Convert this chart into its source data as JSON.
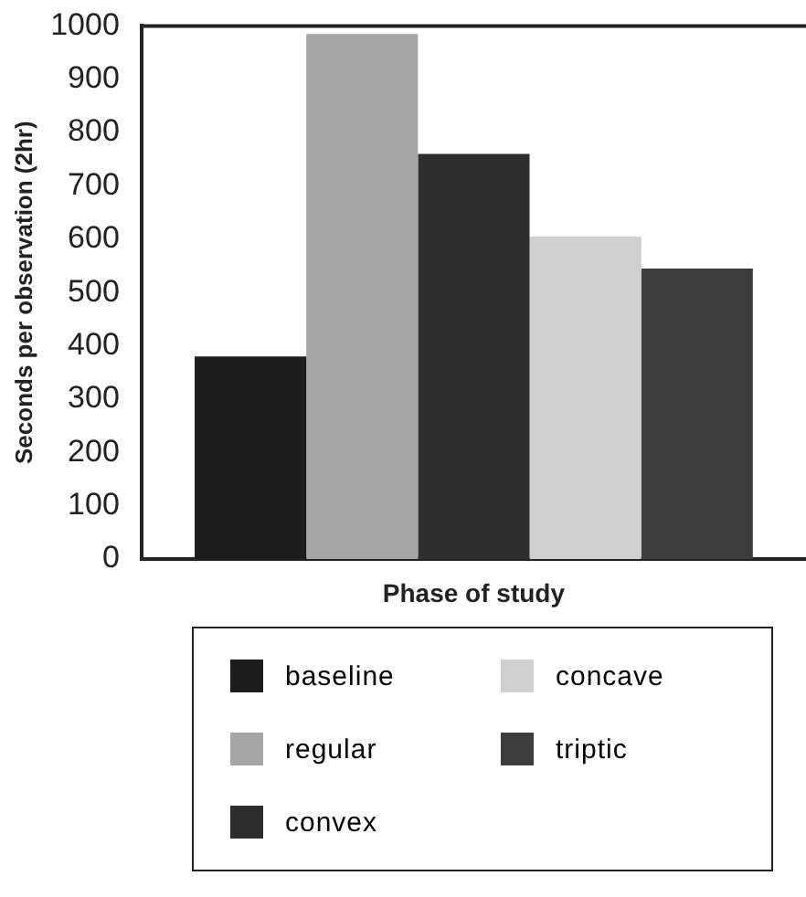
{
  "chart_data": {
    "type": "bar",
    "xlabel": "Phase of study",
    "ylabel": "Seconds per observation (2hr)",
    "categories": [
      null
    ],
    "series": [
      {
        "name": "baseline",
        "color": "#1c1c1c",
        "values": [
          380
        ]
      },
      {
        "name": "regular",
        "color": "#a6a6a6",
        "values": [
          985
        ]
      },
      {
        "name": "convex",
        "color": "#2e2e2e",
        "values": [
          760
        ]
      },
      {
        "name": "concave",
        "color": "#cfcfcf",
        "values": [
          605
        ]
      },
      {
        "name": "triptic",
        "color": "#3c3c3c",
        "values": [
          545
        ]
      }
    ],
    "ylim": [
      0,
      1000
    ],
    "yticks": [
      0,
      100,
      200,
      300,
      400,
      500,
      600,
      700,
      800,
      900,
      1000
    ],
    "grid": false,
    "legend": "bottom"
  }
}
